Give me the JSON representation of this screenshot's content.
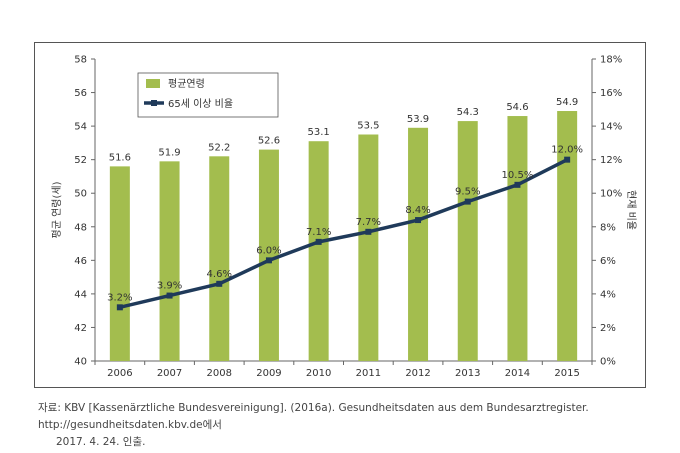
{
  "chart_data": {
    "type": "bar",
    "categories": [
      "2006",
      "2007",
      "2008",
      "2009",
      "2010",
      "2011",
      "2012",
      "2013",
      "2014",
      "2015"
    ],
    "series": [
      {
        "name": "평균연령",
        "type": "bar",
        "axis": "left",
        "values": [
          51.6,
          51.9,
          52.2,
          52.6,
          53.1,
          53.5,
          53.9,
          54.3,
          54.6,
          54.9
        ],
        "labels": [
          "51.6",
          "51.9",
          "52.2",
          "52.6",
          "53.1",
          "53.5",
          "53.9",
          "54.3",
          "54.6",
          "54.9"
        ]
      },
      {
        "name": "65세 이상 비율",
        "type": "line",
        "axis": "right",
        "values": [
          3.2,
          3.9,
          4.6,
          6.0,
          7.1,
          7.7,
          8.4,
          9.5,
          10.5,
          12.0
        ],
        "labels": [
          "3.2%",
          "3.9%",
          "4.6%",
          "6.0%",
          "7.1%",
          "7.7%",
          "8.4%",
          "9.5%",
          "10.5%",
          "12.0%"
        ]
      }
    ],
    "ylabel": "평균 연령(세)",
    "y2label": "현재 비율",
    "ylim": [
      40,
      58
    ],
    "y2lim": [
      0,
      18
    ],
    "yticks": [
      "40",
      "42",
      "44",
      "46",
      "48",
      "50",
      "52",
      "54",
      "56",
      "58"
    ],
    "y2ticks": [
      "0%",
      "2%",
      "4%",
      "6%",
      "8%",
      "10%",
      "12%",
      "14%",
      "16%",
      "18%"
    ],
    "grid": false,
    "legend": "top-left",
    "colors": {
      "bar": "#a3bd4e",
      "line": "#1f3a5a",
      "frame": "#555555"
    }
  },
  "source": {
    "line1": "자료: KBV [Kassenärztliche Bundesvereinigung]. (2016a). Gesundheitsdaten aus dem Bundesarztregister. http://gesundheitsdaten.kbv.de에서",
    "line2": "2017. 4. 24. 인출."
  }
}
